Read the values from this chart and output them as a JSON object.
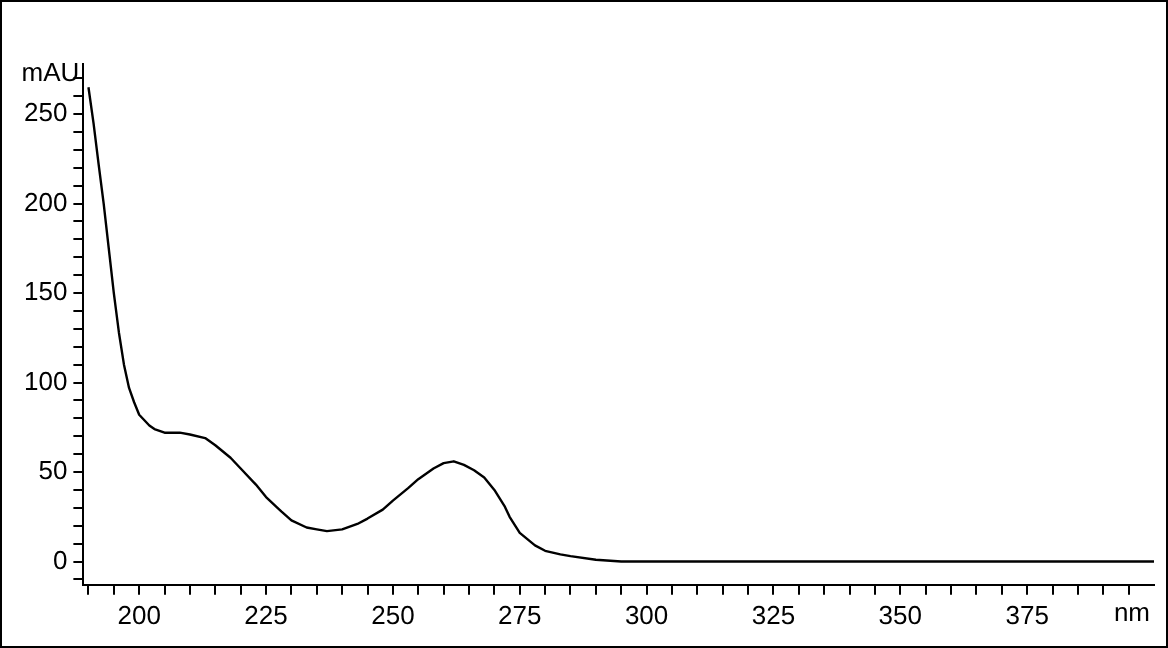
{
  "chart_data": {
    "type": "line",
    "xlabel": "nm",
    "ylabel": "mAU",
    "x": [
      190,
      191,
      192,
      193,
      194,
      195,
      196,
      197,
      198,
      199,
      200,
      202,
      203,
      205,
      208,
      210,
      213,
      215,
      218,
      220,
      223,
      225,
      228,
      230,
      233,
      235,
      237,
      240,
      243,
      245,
      248,
      250,
      253,
      255,
      258,
      260,
      262,
      264,
      266,
      268,
      270,
      272,
      273,
      275,
      278,
      280,
      283,
      285,
      290,
      295,
      300,
      350,
      400
    ],
    "series": [
      {
        "color": "#000000",
        "values": [
          265,
          245,
          222,
          200,
          175,
          150,
          128,
          110,
          97,
          89,
          82,
          76,
          74,
          72,
          72,
          71,
          69,
          65,
          58,
          52,
          43,
          36,
          28,
          23,
          19,
          18,
          17,
          18,
          21,
          24,
          29,
          34,
          41,
          46,
          52,
          55,
          56,
          54,
          51,
          47,
          40,
          31,
          25,
          16,
          9,
          6,
          4,
          3,
          1,
          0,
          0,
          0,
          0
        ]
      }
    ],
    "xlim": [
      189,
      400
    ],
    "ylim": [
      -13,
      278
    ],
    "xticks": [
      200,
      225,
      250,
      275,
      300,
      325,
      350,
      375,
      {
        "value": 190,
        "label": null
      },
      {
        "value": 195,
        "label": null
      },
      {
        "value": 205,
        "label": null
      },
      {
        "value": 210,
        "label": null
      },
      {
        "value": 215,
        "label": null
      },
      {
        "value": 220,
        "label": null
      },
      {
        "value": 230,
        "label": null
      },
      {
        "value": 235,
        "label": null
      },
      {
        "value": 240,
        "label": null
      },
      {
        "value": 245,
        "label": null
      },
      {
        "value": 255,
        "label": null
      },
      {
        "value": 260,
        "label": null
      },
      {
        "value": 265,
        "label": null
      },
      {
        "value": 270,
        "label": null
      },
      {
        "value": 280,
        "label": null
      },
      {
        "value": 285,
        "label": null
      },
      {
        "value": 290,
        "label": null
      },
      {
        "value": 295,
        "label": null
      },
      {
        "value": 305,
        "label": null
      },
      {
        "value": 310,
        "label": null
      },
      {
        "value": 315,
        "label": null
      },
      {
        "value": 320,
        "label": null
      },
      {
        "value": 330,
        "label": null
      },
      {
        "value": 335,
        "label": null
      },
      {
        "value": 340,
        "label": null
      },
      {
        "value": 345,
        "label": null
      },
      {
        "value": 355,
        "label": null
      },
      {
        "value": 360,
        "label": null
      },
      {
        "value": 365,
        "label": null
      },
      {
        "value": 370,
        "label": null
      },
      {
        "value": 380,
        "label": null
      },
      {
        "value": 385,
        "label": null
      },
      {
        "value": 390,
        "label": null
      },
      {
        "value": 395,
        "label": null
      }
    ],
    "yticks": [
      0,
      50,
      100,
      150,
      200,
      250,
      {
        "value": -10,
        "label": null
      },
      {
        "value": 10,
        "label": null
      },
      {
        "value": 20,
        "label": null
      },
      {
        "value": 30,
        "label": null
      },
      {
        "value": 40,
        "label": null
      },
      {
        "value": 60,
        "label": null
      },
      {
        "value": 70,
        "label": null
      },
      {
        "value": 80,
        "label": null
      },
      {
        "value": 90,
        "label": null
      },
      {
        "value": 110,
        "label": null
      },
      {
        "value": 120,
        "label": null
      },
      {
        "value": 130,
        "label": null
      },
      {
        "value": 140,
        "label": null
      },
      {
        "value": 160,
        "label": null
      },
      {
        "value": 170,
        "label": null
      },
      {
        "value": 180,
        "label": null
      },
      {
        "value": 190,
        "label": null
      },
      {
        "value": 210,
        "label": null
      },
      {
        "value": 220,
        "label": null
      },
      {
        "value": 230,
        "label": null
      },
      {
        "value": 240,
        "label": null
      },
      {
        "value": 260,
        "label": null
      },
      {
        "value": 270,
        "label": null
      }
    ],
    "grid": false,
    "legend": false,
    "marker": "none",
    "line_style": "solid"
  }
}
